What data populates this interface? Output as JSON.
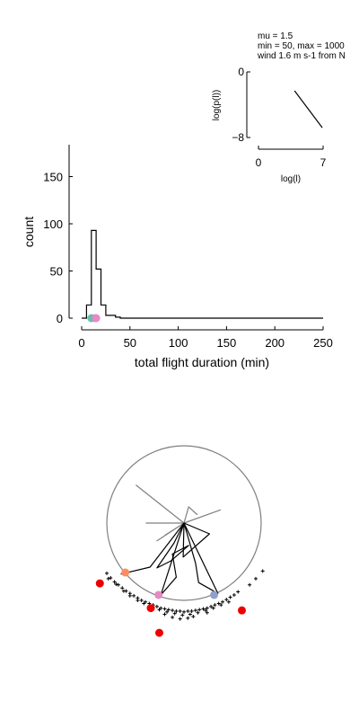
{
  "annotation": {
    "lines": [
      "mu = 1.5",
      "min = 50, max = 1000",
      "wind 1.6 m s-1 from N"
    ]
  },
  "chart_data": [
    {
      "type": "line",
      "role": "inset",
      "xlabel": "log(l)",
      "ylabel": "log(p(l))",
      "xlim": [
        0,
        7
      ],
      "ylim": [
        -8,
        0
      ],
      "xticks": [
        0,
        7
      ],
      "yticks": [
        0,
        -8
      ],
      "series": [
        {
          "x": [
            3.91,
            6.91
          ],
          "y": [
            -2.3,
            -6.8
          ]
        }
      ],
      "grid": false
    },
    {
      "type": "histogram",
      "role": "main",
      "xlabel": "total flight duration (min)",
      "ylabel": "count",
      "xlim": [
        0,
        250
      ],
      "ylim": [
        0,
        180
      ],
      "xticks": [
        0,
        50,
        100,
        150,
        200,
        250
      ],
      "yticks": [
        0,
        50,
        100,
        150
      ],
      "bins": {
        "edges": [
          0,
          5,
          10,
          15,
          20,
          25,
          30,
          35,
          40,
          45,
          50,
          250
        ],
        "counts": [
          0,
          14,
          93,
          52,
          14,
          3,
          3,
          1,
          0,
          0,
          0
        ]
      },
      "markers": [
        {
          "x": 10,
          "y": 0,
          "color": "#66c2a5"
        },
        {
          "x": 14,
          "y": 0,
          "color": "#8da0cb"
        },
        {
          "x": 15,
          "y": 0,
          "color": "#e78ac3"
        }
      ],
      "grid": false
    },
    {
      "type": "scatter",
      "role": "flight-track-map",
      "arena": {
        "center": [
          0,
          0
        ],
        "radius": 1.0,
        "color": "#808080"
      },
      "paths": [
        {
          "color": "#808080",
          "points": [
            [
              0,
              0
            ],
            [
              -0.62,
              0.49
            ],
            [
              0,
              0
            ],
            [
              -0.35,
              -0.23
            ],
            [
              0,
              0
            ],
            [
              -0.49,
              0
            ],
            [
              0,
              0
            ],
            [
              0.47,
              0.17
            ],
            [
              0,
              0
            ],
            [
              0.06,
              0.21
            ],
            [
              0.17,
              0.11
            ],
            [
              0.06,
              0.21
            ],
            [
              0,
              0
            ],
            [
              -0.25,
              -0.16
            ]
          ]
        },
        {
          "color": "#000000",
          "points": [
            [
              0,
              0
            ],
            [
              -0.13,
              -0.26
            ],
            [
              -0.35,
              -0.58
            ],
            [
              -0.17,
              -0.49
            ],
            [
              0.06,
              -0.29
            ],
            [
              -0.15,
              -0.4
            ],
            [
              -0.1,
              -0.7
            ],
            [
              -0.3,
              -0.93
            ],
            [
              0,
              0
            ],
            [
              0.15,
              -0.52
            ],
            [
              0.19,
              -0.77
            ],
            [
              0.44,
              -0.91
            ],
            [
              0,
              0
            ],
            [
              0.33,
              -0.14
            ],
            [
              -0.01,
              -0.44
            ],
            [
              0,
              0
            ],
            [
              -0.44,
              -0.57
            ],
            [
              -0.82,
              -0.66
            ]
          ]
        }
      ],
      "crosses": {
        "color": "#000000",
        "points": [
          [
            -1.0,
            -0.65
          ],
          [
            -0.95,
            -0.71
          ],
          [
            -0.9,
            -0.76
          ],
          [
            -0.85,
            -0.8
          ],
          [
            -0.8,
            -0.84
          ],
          [
            -0.75,
            -0.88
          ],
          [
            -0.7,
            -0.91
          ],
          [
            -0.65,
            -0.94
          ],
          [
            -0.6,
            -0.97
          ],
          [
            -0.55,
            -1.0
          ],
          [
            -0.5,
            -1.02
          ],
          [
            -0.45,
            -1.04
          ],
          [
            -0.4,
            -1.06
          ],
          [
            -0.35,
            -1.08
          ],
          [
            -0.3,
            -1.1
          ],
          [
            -0.25,
            -1.11
          ],
          [
            -0.2,
            -1.12
          ],
          [
            -0.15,
            -1.13
          ],
          [
            -0.1,
            -1.14
          ],
          [
            -0.05,
            -1.14
          ],
          [
            0.0,
            -1.15
          ],
          [
            0.05,
            -1.14
          ],
          [
            0.1,
            -1.14
          ],
          [
            0.15,
            -1.13
          ],
          [
            0.2,
            -1.12
          ],
          [
            0.25,
            -1.11
          ],
          [
            0.3,
            -1.1
          ],
          [
            0.35,
            -1.08
          ],
          [
            0.4,
            -1.06
          ],
          [
            0.45,
            -1.04
          ],
          [
            0.5,
            -1.02
          ],
          [
            0.55,
            -0.99
          ],
          [
            0.6,
            -0.96
          ],
          [
            0.65,
            -0.93
          ],
          [
            0.7,
            -0.89
          ],
          [
            0.85,
            -0.8
          ],
          [
            0.93,
            -0.72
          ],
          [
            1.02,
            -0.62
          ],
          [
            -0.98,
            -0.72
          ],
          [
            -0.88,
            -0.79
          ],
          [
            -0.78,
            -0.88
          ],
          [
            -0.7,
            -0.94
          ],
          [
            -0.6,
            -1.0
          ],
          [
            -0.52,
            -1.04
          ],
          [
            -0.42,
            -1.08
          ],
          [
            -0.32,
            -1.12
          ],
          [
            -0.22,
            -1.15
          ],
          [
            -0.12,
            -1.17
          ],
          [
            -0.02,
            -1.19
          ],
          [
            0.08,
            -1.18
          ],
          [
            0.18,
            -1.16
          ],
          [
            0.28,
            -1.13
          ],
          [
            0.38,
            -1.1
          ],
          [
            0.48,
            -1.06
          ],
          [
            0.58,
            -1.02
          ],
          [
            -0.15,
            -1.22
          ],
          [
            -0.05,
            -1.24
          ],
          [
            0.05,
            -1.23
          ],
          [
            0.12,
            -1.21
          ],
          [
            -0.25,
            -1.18
          ],
          [
            0.3,
            -1.16
          ]
        ]
      },
      "dots": [
        {
          "x": -0.76,
          "y": -0.64,
          "color": "#fc8d62"
        },
        {
          "x": -0.33,
          "y": -0.93,
          "color": "#e78ac3"
        },
        {
          "x": 0.39,
          "y": -0.93,
          "color": "#8da0cb"
        },
        {
          "x": -1.09,
          "y": -0.78,
          "color": "#ee0000"
        },
        {
          "x": -0.43,
          "y": -1.1,
          "color": "#ee0000"
        },
        {
          "x": -0.32,
          "y": -1.42,
          "color": "#ee0000"
        },
        {
          "x": 0.75,
          "y": -1.13,
          "color": "#ee0000"
        }
      ]
    }
  ]
}
